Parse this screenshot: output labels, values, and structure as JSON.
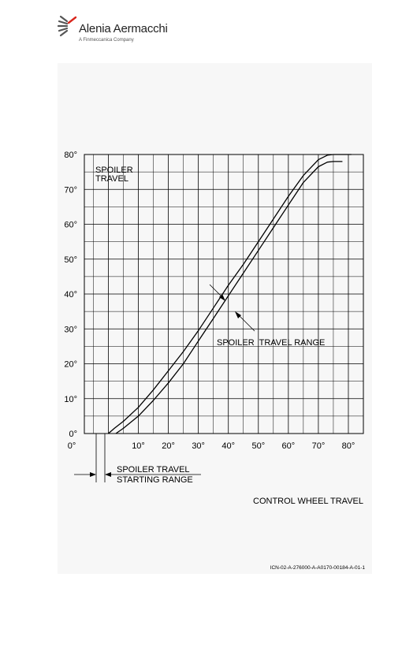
{
  "logo": {
    "name": "Alenia Aermacchi",
    "subtitle": "A Finmeccanica Company"
  },
  "chart_data": {
    "type": "line",
    "title": "",
    "xlabel": "CONTROL WHEEL TRAVEL",
    "ylabel": "SPOILER TRAVEL",
    "xlim": [
      -8,
      85
    ],
    "ylim": [
      0,
      80
    ],
    "grid": true,
    "x_ticks": [
      "0°",
      "10°",
      "20°",
      "30°",
      "40°",
      "50°",
      "60°",
      "70°",
      "80°"
    ],
    "y_ticks": [
      "0°",
      "10°",
      "20°",
      "30°",
      "40°",
      "50°",
      "60°",
      "70°",
      "80°"
    ],
    "series": [
      {
        "x": [
          0,
          2,
          5,
          10,
          15,
          20,
          25,
          30,
          35,
          40,
          45,
          50,
          55,
          60,
          65,
          70,
          73,
          75,
          78,
          81
        ],
        "values": [
          0,
          1.5,
          3.5,
          7.5,
          12.5,
          18,
          23.5,
          29.5,
          36,
          42.5,
          48.5,
          55,
          61.5,
          68,
          74,
          78.5,
          79.8,
          80,
          80,
          80
        ]
      },
      {
        "x": [
          2.5,
          5,
          10,
          15,
          20,
          25,
          30,
          35,
          40,
          45,
          50,
          55,
          60,
          65,
          70,
          73,
          75,
          78
        ],
        "values": [
          0,
          1.5,
          5,
          9.5,
          14.5,
          20,
          26.5,
          33,
          39.5,
          46,
          52.5,
          59,
          65.5,
          72,
          76.5,
          77.8,
          78,
          78
        ]
      }
    ],
    "annotations": {
      "range_label": "SPOILER  TRAVEL RANGE",
      "starting_range_line1": "SPOILER TRAVEL",
      "starting_range_line2": "STARTING RANGE"
    }
  },
  "figure_id": "ICN-02-A-276000-A-A0170-00184-A-01-1"
}
